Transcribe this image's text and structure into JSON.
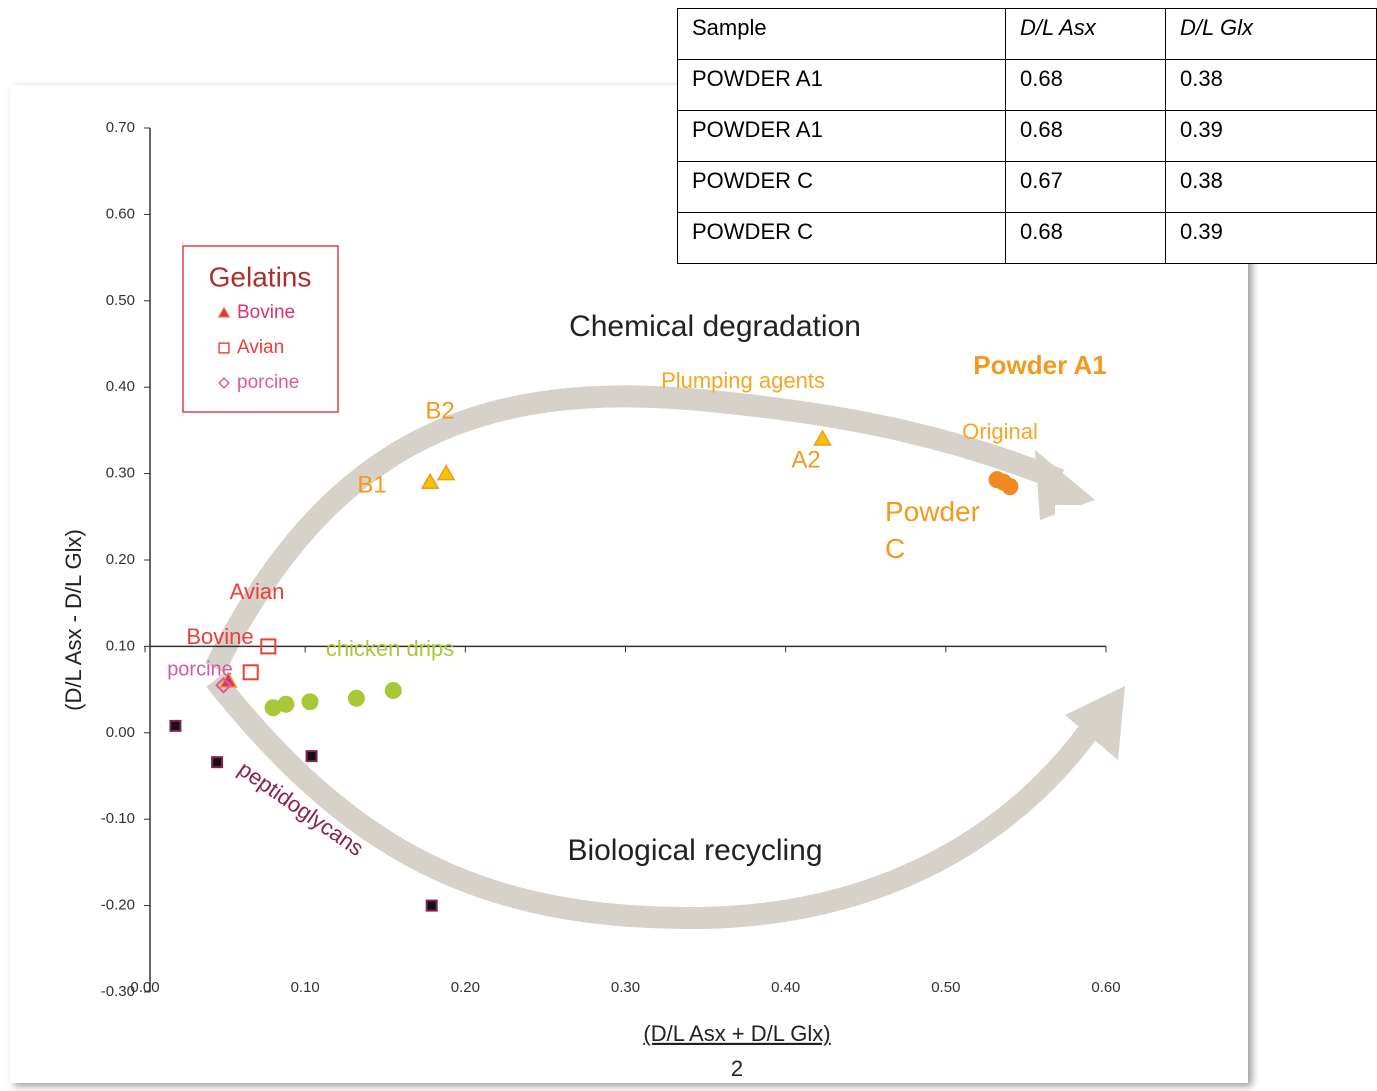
{
  "chart_data": {
    "type": "scatter",
    "ylabel": "(D/L Asx - D/L Glx)",
    "xlabel": "(D/L Asx + D/L Glx)",
    "xlabel_denominator": "2",
    "xlim": [
      0,
      0.6
    ],
    "ylim": [
      -0.3,
      0.7
    ],
    "xticks": [
      {
        "value": 0,
        "label": "0.00"
      },
      {
        "value": 0.1,
        "label": "0.10"
      },
      {
        "value": 0.2,
        "label": "0.20"
      },
      {
        "value": 0.3,
        "label": "0.30"
      },
      {
        "value": 0.4,
        "label": "0.40"
      },
      {
        "value": 0.5,
        "label": "0.50"
      },
      {
        "value": 0.6,
        "label": "0.60"
      }
    ],
    "yticks": [
      {
        "value": 0.7,
        "label": "0.70"
      },
      {
        "value": 0.6,
        "label": "0.60"
      },
      {
        "value": 0.5,
        "label": "0.50"
      },
      {
        "value": 0.4,
        "label": "0.40"
      },
      {
        "value": 0.3,
        "label": "0.30"
      },
      {
        "value": 0.2,
        "label": "0.20"
      },
      {
        "value": 0.1,
        "label": "0.10"
      },
      {
        "value": 0,
        "label": "0.00"
      },
      {
        "value": -0.1,
        "label": "-0.10"
      },
      {
        "value": -0.2,
        "label": "-0.20"
      },
      {
        "value": -0.3,
        "label": "-0.30"
      }
    ],
    "legend_title": "Gelatins",
    "legend_series": [
      0,
      1,
      2
    ],
    "series": [
      {
        "name": "Bovine",
        "marker": "triangle",
        "color": "#d8336b",
        "x": [
          0.052
        ],
        "values": [
          0.06
        ]
      },
      {
        "name": "Avian",
        "marker": "square",
        "color": "#e8403a",
        "x": [
          0.077,
          0.066
        ],
        "values": [
          0.1,
          0.07
        ]
      },
      {
        "name": "porcine",
        "marker": "diamond",
        "color": "#e05a9a",
        "x": [
          0.049
        ],
        "values": [
          0.055
        ]
      },
      {
        "name": "chicken drips",
        "marker": "circle",
        "color": "#a8c838",
        "x": [
          0.08,
          0.088,
          0.103,
          0.132,
          0.155
        ],
        "values": [
          0.029,
          0.033,
          0.036,
          0.04,
          0.049
        ]
      },
      {
        "name": "peptidoglycans",
        "marker": "blacksquare",
        "color": "#8a2050",
        "x": [
          0.019,
          0.045,
          0.104,
          0.179
        ],
        "values": [
          0.008,
          -0.034,
          -0.027,
          -0.2
        ]
      },
      {
        "name": "Plumping agents",
        "marker": "triangle",
        "color": "#f5c400",
        "x": [
          0.178,
          0.188,
          0.423
        ],
        "values": [
          0.29,
          0.3,
          0.34
        ],
        "labels": [
          "B1",
          "B2",
          "A2"
        ]
      },
      {
        "name": "Original",
        "marker": "circle",
        "color": "#f08a20",
        "x": [
          0.532,
          0.536,
          0.54
        ],
        "values": [
          0.293,
          0.29,
          0.285
        ]
      }
    ],
    "annotations": [
      "Chemical degradation",
      "Biological recycling",
      "Powder A1",
      "Powder C",
      "Avian",
      "Bovine",
      "porcine"
    ]
  },
  "table": {
    "header": [
      "Sample",
      "D/L Asx",
      "D/L Glx"
    ],
    "rows": [
      [
        "POWDER A1",
        "0.68",
        "0.38"
      ],
      [
        "POWDER A1",
        "0.68",
        "0.39"
      ],
      [
        "POWDER C",
        "0.67",
        "0.38"
      ],
      [
        "POWDER C",
        "0.68",
        "0.39"
      ]
    ]
  }
}
